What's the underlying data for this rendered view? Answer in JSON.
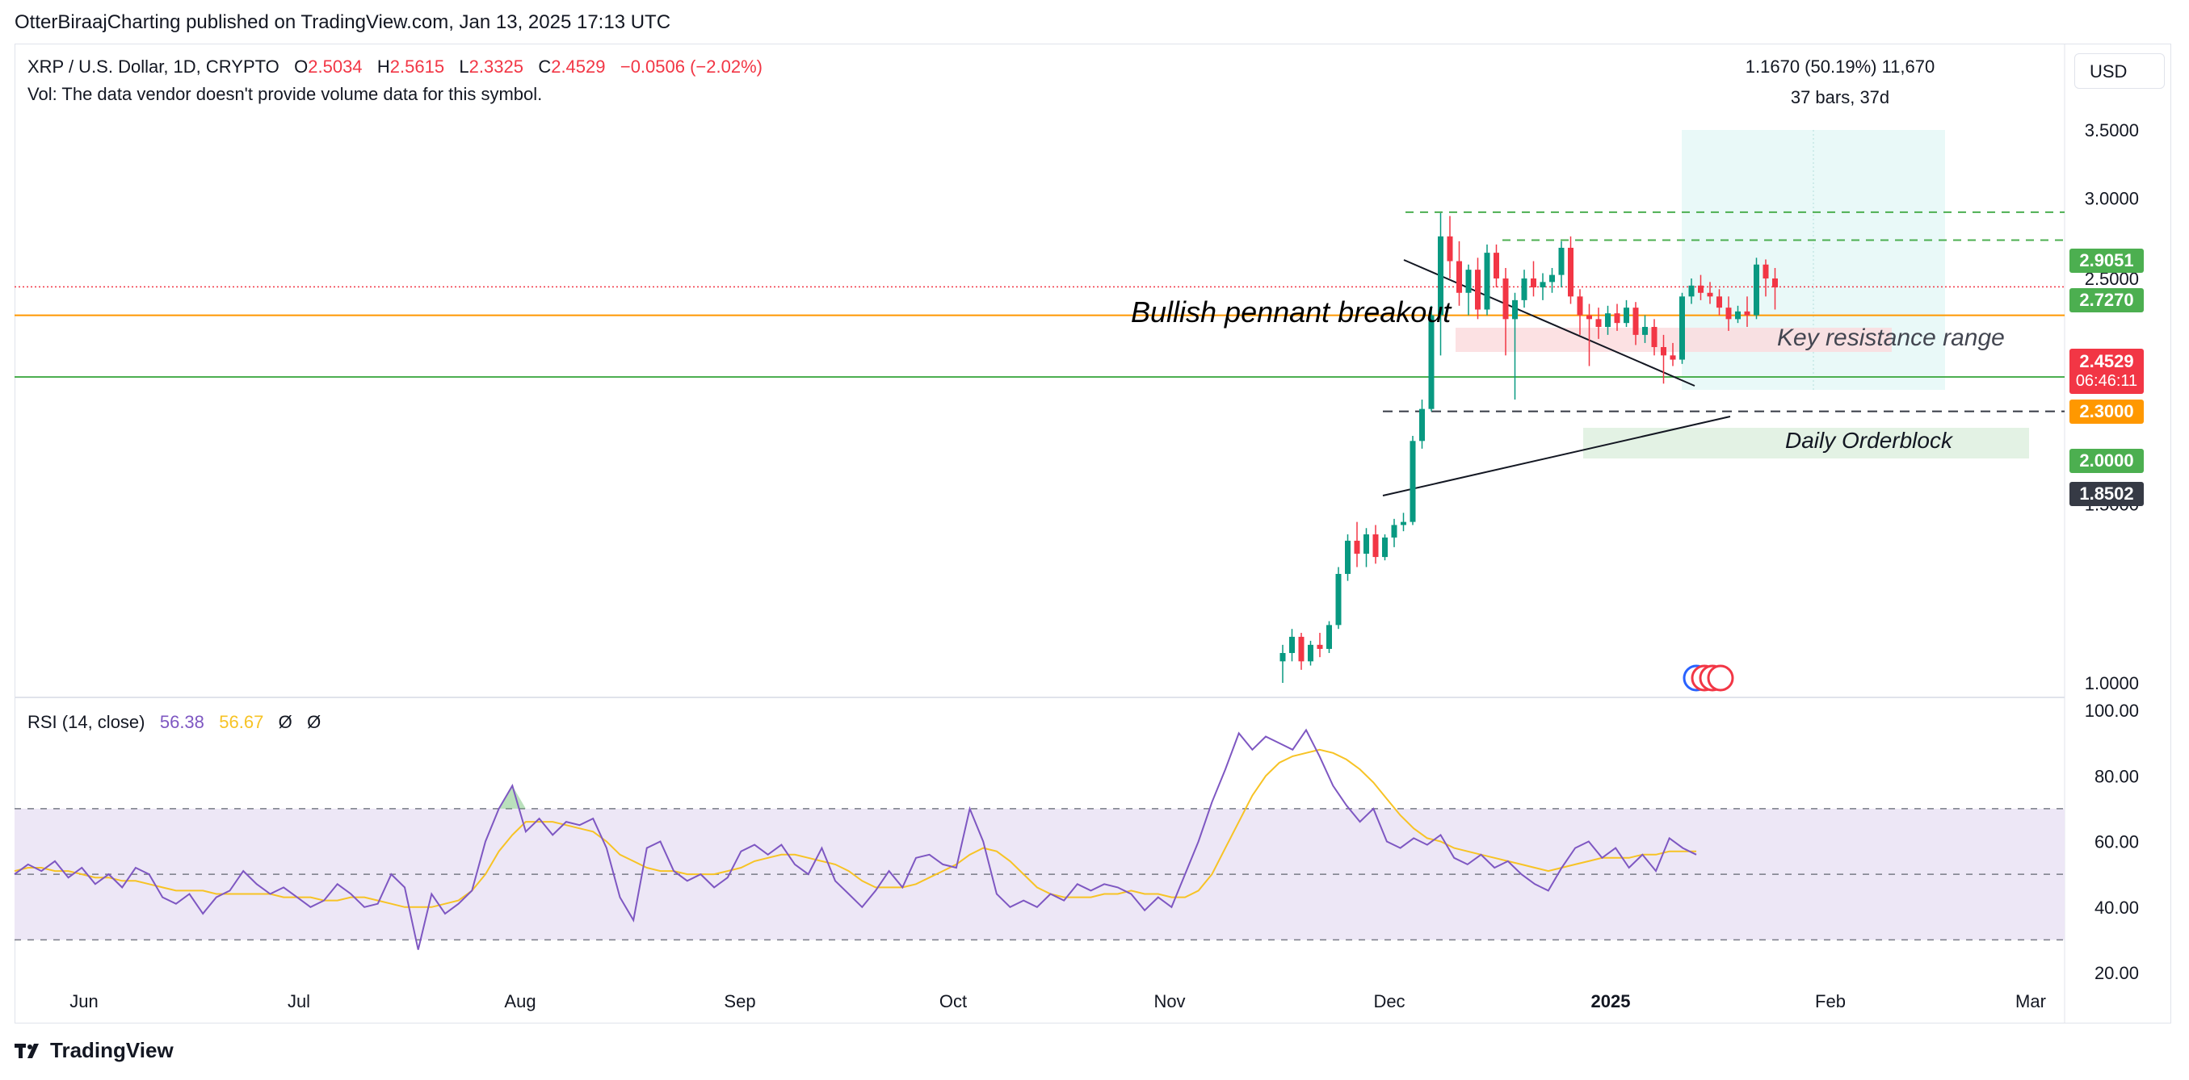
{
  "publish_line": "OtterBiraajCharting published on TradingView.com, Jan 13, 2025 17:13 UTC",
  "legend": {
    "symbol": "XRP / U.S. Dollar, 1D, CRYPTO",
    "o_label": "O",
    "o_value": "2.5034",
    "h_label": "H",
    "h_value": "2.5615",
    "l_label": "L",
    "l_value": "2.3325",
    "c_label": "C",
    "c_value": "2.4529",
    "change": "−0.0506 (−2.02%)",
    "vol_note": "Vol: The data vendor doesn't provide volume data for this symbol."
  },
  "measure": {
    "line1": "1.1670 (50.19%) 11,670",
    "line2": "37 bars, 37d"
  },
  "currency_button": "USD",
  "annotations": {
    "pennant": "Bullish pennant breakout",
    "resistance": "Key resistance range",
    "orderblock": "Daily Orderblock"
  },
  "price_tags": {
    "t1": "2.9051",
    "t2": "2.7270",
    "current": "2.4529",
    "countdown": "06:46:11",
    "t3": "2.3000",
    "t4": "2.0000",
    "t5": "1.8502"
  },
  "rsi_legend": {
    "label": "RSI (14, close)",
    "rsi": "56.38",
    "ma": "56.67",
    "e1": "Ø",
    "e2": "Ø"
  },
  "brand": "TradingView",
  "colors": {
    "up": "#089981",
    "down": "#f23645",
    "rsi": "#7e57c2",
    "rsi_ma": "#f7c325",
    "orange": "#ff9800",
    "green_line": "#4caf50",
    "measure_fill": "#e0f7f5",
    "resist_fill": "#fbd9dc",
    "ob_fill": "#e3f2e4",
    "rsi_band": "#ede7f6",
    "tag_green": "#4caf50",
    "tag_orange": "#ff9800",
    "tag_red": "#f23645",
    "tag_dark": "#363a45"
  },
  "chart_data": [
    {
      "type": "candlestick",
      "title": "XRP / U.S. Dollar, 1D, CRYPTO",
      "ylim": [
        1.0,
        3.5
      ],
      "y_scale": "log",
      "y_ticks": [
        "3.5000",
        "3.0000",
        "2.5000",
        "1.5000",
        "1.0000"
      ],
      "x_ticks": [
        "Jun",
        "Jul",
        "Aug",
        "Sep",
        "Oct",
        "Nov",
        "Dec",
        "2025",
        "Feb",
        "Mar"
      ],
      "horizontal_levels": [
        2.9051,
        2.727,
        2.4529,
        2.3,
        2.0,
        1.8502
      ],
      "ohlc": [
        [
          1.05,
          1.09,
          1.0,
          1.07
        ],
        [
          1.07,
          1.13,
          1.05,
          1.11
        ],
        [
          1.11,
          1.12,
          1.03,
          1.05
        ],
        [
          1.05,
          1.1,
          1.04,
          1.09
        ],
        [
          1.09,
          1.12,
          1.06,
          1.08
        ],
        [
          1.08,
          1.15,
          1.07,
          1.14
        ],
        [
          1.14,
          1.3,
          1.13,
          1.28
        ],
        [
          1.28,
          1.4,
          1.26,
          1.38
        ],
        [
          1.38,
          1.44,
          1.3,
          1.34
        ],
        [
          1.34,
          1.42,
          1.3,
          1.4
        ],
        [
          1.4,
          1.43,
          1.31,
          1.33
        ],
        [
          1.33,
          1.4,
          1.32,
          1.39
        ],
        [
          1.39,
          1.45,
          1.36,
          1.43
        ],
        [
          1.43,
          1.47,
          1.41,
          1.44
        ],
        [
          1.44,
          1.75,
          1.43,
          1.73
        ],
        [
          1.73,
          1.9,
          1.7,
          1.86
        ],
        [
          1.86,
          2.35,
          1.85,
          2.3
        ],
        [
          2.3,
          2.9,
          2.1,
          2.75
        ],
        [
          2.75,
          2.88,
          2.5,
          2.6
        ],
        [
          2.6,
          2.72,
          2.35,
          2.42
        ],
        [
          2.42,
          2.58,
          2.3,
          2.55
        ],
        [
          2.55,
          2.62,
          2.28,
          2.33
        ],
        [
          2.33,
          2.7,
          2.3,
          2.65
        ],
        [
          2.65,
          2.7,
          2.45,
          2.5
        ],
        [
          2.5,
          2.56,
          2.1,
          2.28
        ],
        [
          2.28,
          2.42,
          1.9,
          2.38
        ],
        [
          2.38,
          2.55,
          2.34,
          2.5
        ],
        [
          2.5,
          2.6,
          2.4,
          2.45
        ],
        [
          2.45,
          2.53,
          2.38,
          2.48
        ],
        [
          2.48,
          2.56,
          2.42,
          2.52
        ],
        [
          2.52,
          2.72,
          2.45,
          2.68
        ],
        [
          2.68,
          2.75,
          2.36,
          2.4
        ],
        [
          2.4,
          2.44,
          2.2,
          2.3
        ],
        [
          2.3,
          2.36,
          2.05,
          2.28
        ],
        [
          2.28,
          2.34,
          2.18,
          2.24
        ],
        [
          2.24,
          2.35,
          2.2,
          2.31
        ],
        [
          2.31,
          2.36,
          2.22,
          2.26
        ],
        [
          2.26,
          2.38,
          2.24,
          2.34
        ],
        [
          2.34,
          2.37,
          2.15,
          2.2
        ],
        [
          2.2,
          2.3,
          2.16,
          2.24
        ],
        [
          2.24,
          2.28,
          2.1,
          2.14
        ],
        [
          2.14,
          2.2,
          1.97,
          2.1
        ],
        [
          2.1,
          2.16,
          2.05,
          2.08
        ],
        [
          2.08,
          2.42,
          2.06,
          2.4
        ],
        [
          2.4,
          2.5,
          2.36,
          2.46
        ],
        [
          2.46,
          2.52,
          2.38,
          2.42
        ],
        [
          2.42,
          2.48,
          2.36,
          2.4
        ],
        [
          2.4,
          2.44,
          2.3,
          2.34
        ],
        [
          2.34,
          2.4,
          2.22,
          2.28
        ],
        [
          2.28,
          2.35,
          2.26,
          2.32
        ],
        [
          2.32,
          2.4,
          2.24,
          2.3
        ],
        [
          2.3,
          2.62,
          2.28,
          2.58
        ],
        [
          2.58,
          2.61,
          2.4,
          2.5
        ],
        [
          2.5,
          2.56,
          2.33,
          2.45
        ]
      ]
    },
    {
      "type": "line",
      "title": "RSI (14, close)",
      "ylim": [
        20,
        100
      ],
      "y_ticks": [
        "100.00",
        "80.00",
        "60.00",
        "40.00",
        "20.00"
      ],
      "bands": [
        70,
        50,
        30
      ],
      "series": [
        {
          "name": "RSI",
          "values": [
            50,
            53,
            51,
            54,
            49,
            52,
            47,
            50,
            46,
            52,
            50,
            43,
            41,
            44,
            38,
            43,
            45,
            51,
            47,
            44,
            46,
            43,
            40,
            42,
            47,
            44,
            40,
            41,
            50,
            46,
            27,
            44,
            38,
            41,
            45,
            60,
            70,
            77,
            63,
            67,
            62,
            66,
            65,
            67,
            58,
            43,
            36,
            58,
            60,
            51,
            48,
            50,
            46,
            49,
            57,
            59,
            56,
            59,
            53,
            50,
            58,
            48,
            44,
            40,
            45,
            51,
            46,
            55,
            56,
            53,
            52,
            70,
            60,
            44,
            40,
            42,
            40,
            44,
            42,
            47,
            45,
            47,
            46,
            44,
            39,
            43,
            40,
            50,
            60,
            72,
            82,
            93,
            88,
            92,
            90,
            88,
            94,
            86,
            77,
            71,
            66,
            70,
            60,
            58,
            61,
            59,
            62,
            55,
            53,
            56,
            52,
            54,
            50,
            47,
            45,
            52,
            58,
            60,
            55,
            58,
            52,
            56,
            51,
            61,
            58,
            56
          ]
        },
        {
          "name": "RSI MA",
          "values": [
            51,
            52,
            52,
            51,
            51,
            50,
            49,
            49,
            48,
            48,
            47,
            46,
            45,
            45,
            45,
            44,
            44,
            44,
            44,
            44,
            43,
            43,
            43,
            42,
            42,
            43,
            43,
            42,
            41,
            40,
            40,
            40,
            41,
            42,
            45,
            50,
            57,
            62,
            66,
            66,
            66,
            65,
            64,
            63,
            60,
            56,
            54,
            52,
            51,
            51,
            50,
            50,
            50,
            51,
            52,
            54,
            55,
            56,
            56,
            55,
            54,
            53,
            51,
            48,
            46,
            46,
            46,
            47,
            49,
            51,
            53,
            56,
            58,
            57,
            54,
            50,
            46,
            44,
            43,
            43,
            43,
            44,
            44,
            45,
            44,
            44,
            43,
            43,
            45,
            50,
            58,
            66,
            74,
            80,
            84,
            86,
            87,
            88,
            87,
            85,
            82,
            78,
            73,
            68,
            64,
            61,
            60,
            58,
            57,
            56,
            55,
            54,
            53,
            52,
            51,
            52,
            53,
            54,
            55,
            55,
            55,
            56,
            56,
            57,
            57,
            57
          ]
        }
      ]
    }
  ]
}
